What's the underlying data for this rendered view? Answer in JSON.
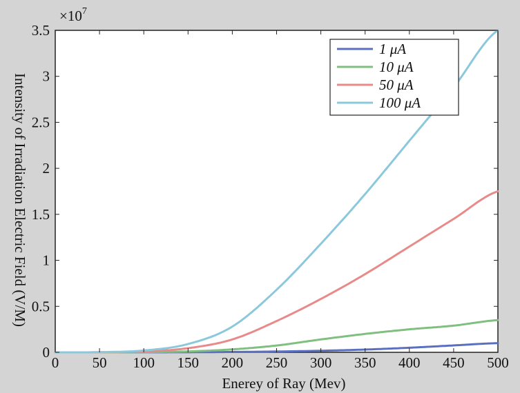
{
  "chart_data": {
    "type": "line",
    "xlabel": "Enerey of Ray (Mev)",
    "ylabel": "Intensity of Irradiation Electric Field (V/M)",
    "multiplier_label": "×10",
    "multiplier_exponent": "7",
    "xlim": [
      0,
      500
    ],
    "ylim": [
      0,
      35000000
    ],
    "xticks": [
      0,
      50,
      100,
      150,
      200,
      250,
      300,
      350,
      400,
      450,
      500
    ],
    "yticks": [
      0,
      5000000,
      10000000,
      15000000,
      20000000,
      25000000,
      30000000,
      35000000
    ],
    "xtick_labels": [
      "0",
      "50",
      "100",
      "150",
      "200",
      "250",
      "300",
      "350",
      "400",
      "450",
      "500"
    ],
    "ytick_labels": [
      "0",
      "0.5",
      "1",
      "1.5",
      "2",
      "2.5",
      "3",
      "3.5"
    ],
    "grid": false,
    "legend_position": "top-right",
    "x": [
      0,
      50,
      100,
      150,
      200,
      250,
      300,
      350,
      400,
      450,
      500
    ],
    "series": [
      {
        "name": "1 μA",
        "color": "#5b6fc0",
        "values": [
          0,
          0,
          1000,
          10000,
          40000,
          90000,
          170000,
          300000,
          500000,
          750000,
          1000000
        ]
      },
      {
        "name": "10 μA",
        "color": "#7fbf7f",
        "values": [
          0,
          0,
          20000,
          100000,
          320000,
          740000,
          1400000,
          2000000,
          2500000,
          2900000,
          3500000
        ]
      },
      {
        "name": "50 μA",
        "color": "#e88a8a",
        "values": [
          0,
          10000,
          90000,
          450000,
          1400000,
          3400000,
          5800000,
          8500000,
          11500000,
          14500000,
          17500000
        ]
      },
      {
        "name": "100 μA",
        "color": "#8cc8dc",
        "values": [
          0,
          20000,
          200000,
          900000,
          2800000,
          6800000,
          11800000,
          17200000,
          23000000,
          28800000,
          35000000
        ]
      }
    ]
  }
}
